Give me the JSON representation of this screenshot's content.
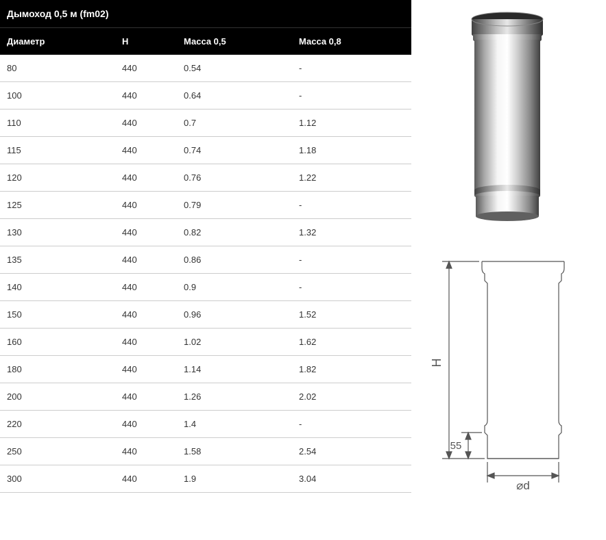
{
  "title": "Дымоход 0,5 м (fm02)",
  "columns": [
    "Диаметр",
    "H",
    "Масса 0,5",
    "Масса 0,8"
  ],
  "rows": [
    [
      "80",
      "440",
      "0.54",
      "-"
    ],
    [
      "100",
      "440",
      "0.64",
      "-"
    ],
    [
      "110",
      "440",
      "0.7",
      "1.12"
    ],
    [
      "115",
      "440",
      "0.74",
      "1.18"
    ],
    [
      "120",
      "440",
      "0.76",
      "1.22"
    ],
    [
      "125",
      "440",
      "0.79",
      "-"
    ],
    [
      "130",
      "440",
      "0.82",
      "1.32"
    ],
    [
      "135",
      "440",
      "0.86",
      "-"
    ],
    [
      "140",
      "440",
      "0.9",
      "-"
    ],
    [
      "150",
      "440",
      "0.96",
      "1.52"
    ],
    [
      "160",
      "440",
      "1.02",
      "1.62"
    ],
    [
      "180",
      "440",
      "1.14",
      "1.82"
    ],
    [
      "200",
      "440",
      "1.26",
      "2.02"
    ],
    [
      "220",
      "440",
      "1.4",
      "-"
    ],
    [
      "250",
      "440",
      "1.58",
      "2.54"
    ],
    [
      "300",
      "440",
      "1.9",
      "3.04"
    ]
  ],
  "schematic": {
    "h_label": "H",
    "bottom_dim": "55",
    "diameter_label": "⌀d"
  },
  "style": {
    "header_bg": "#000000",
    "header_fg": "#ffffff",
    "row_border": "#cccccc",
    "cell_fg": "#333333",
    "title_fontsize": 14,
    "cell_fontsize": 13,
    "pipe_body": "#b8b8b8",
    "pipe_highlight": "#f5f5f5",
    "pipe_shadow": "#5a5a5a",
    "schematic_stroke": "#555555",
    "schematic_stroke_width": 1.2
  }
}
